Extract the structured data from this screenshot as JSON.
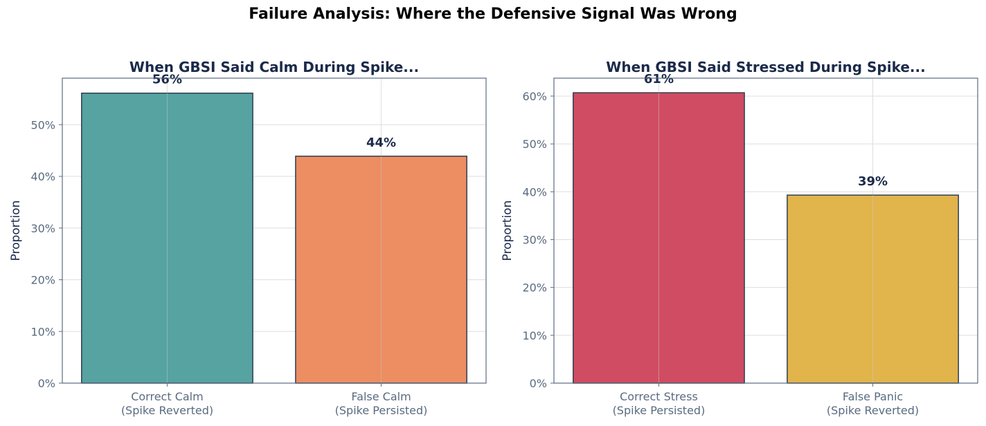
{
  "suptitle": "Failure Analysis: Where the Defensive Signal Was Wrong",
  "colors": {
    "title": "#1b2a4a",
    "tick": "#5a6b80",
    "spine": "#5a6b80",
    "grid": "#dddddd",
    "edge": "#2f3e50"
  },
  "chart_data": [
    {
      "type": "bar",
      "title": "When GBSI Said Calm During Spike...",
      "ylabel": "Proportion",
      "categories": [
        [
          "Correct Calm",
          "(Spike Reverted)"
        ],
        [
          "False Calm",
          "(Spike Persisted)"
        ]
      ],
      "values": [
        0.561,
        0.439
      ],
      "labels": [
        "56%",
        "44%"
      ],
      "colors": [
        "#56a3a1",
        "#ec8e62"
      ],
      "ylim": [
        0,
        0.59
      ],
      "yticks": [
        0,
        0.1,
        0.2,
        0.3,
        0.4,
        0.5
      ],
      "yticklabels": [
        "0%",
        "10%",
        "20%",
        "30%",
        "40%",
        "50%"
      ],
      "grid": true
    },
    {
      "type": "bar",
      "title": "When GBSI Said Stressed During Spike...",
      "ylabel": "Proportion",
      "categories": [
        [
          "Correct Stress",
          "(Spike Persisted)"
        ],
        [
          "False Panic",
          "(Spike Reverted)"
        ]
      ],
      "values": [
        0.607,
        0.393
      ],
      "labels": [
        "61%",
        "39%"
      ],
      "colors": [
        "#d04c62",
        "#e1b44c"
      ],
      "ylim": [
        0,
        0.6375
      ],
      "yticks": [
        0,
        0.1,
        0.2,
        0.3,
        0.4,
        0.5,
        0.6
      ],
      "yticklabels": [
        "0%",
        "10%",
        "20%",
        "30%",
        "40%",
        "50%",
        "60%"
      ],
      "grid": true
    }
  ]
}
